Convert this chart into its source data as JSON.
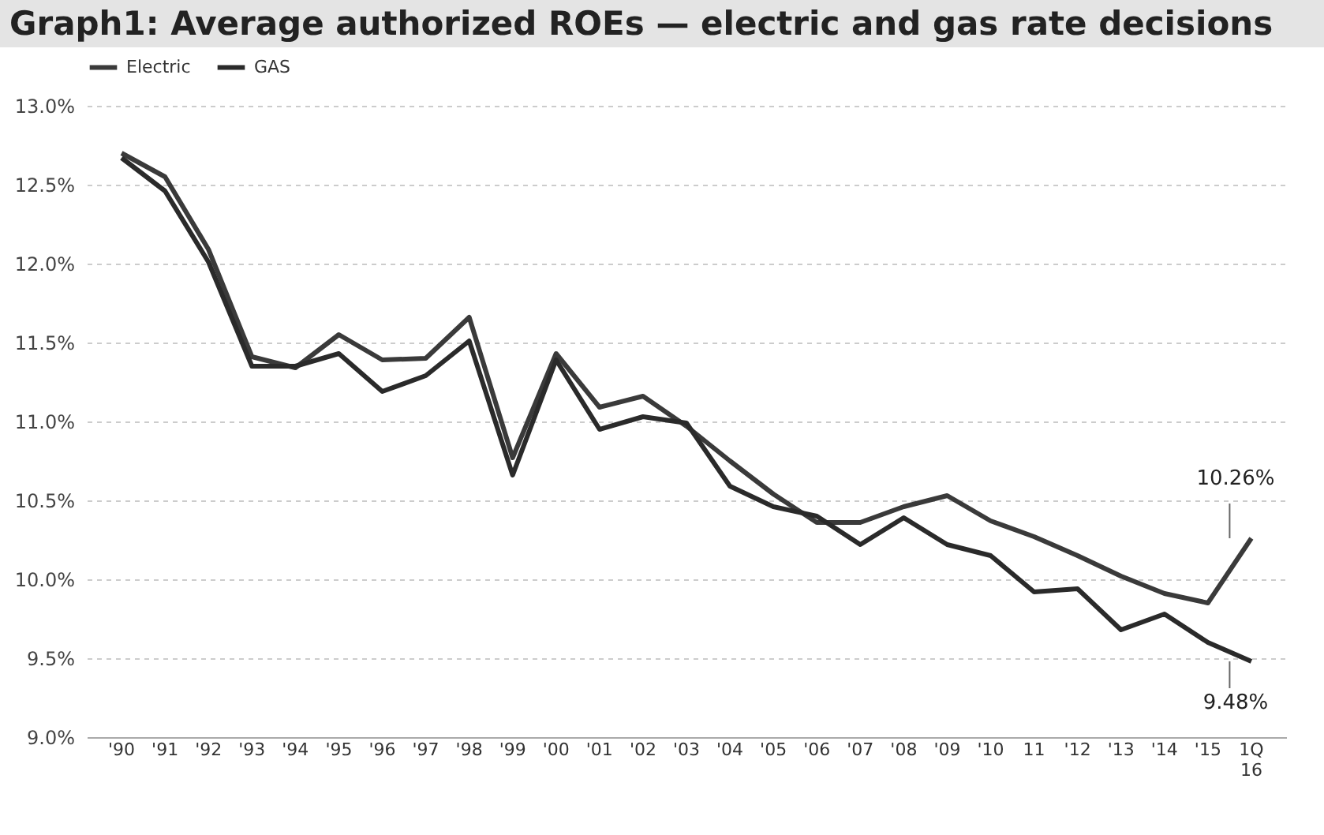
{
  "chart_data": {
    "type": "line",
    "title": "Graph1: Average authorized ROEs — electric and gas rate decisions",
    "categories": [
      "'90",
      "'91",
      "'92",
      "'93",
      "'94",
      "'95",
      "'96",
      "'97",
      "'98",
      "'99",
      "'00",
      "'01",
      "'02",
      "'03",
      "'04",
      "'05",
      "'06",
      "'07",
      "'08",
      "'09",
      "'10",
      "11",
      "'12",
      "'13",
      "'14",
      "'15",
      "1Q 16"
    ],
    "series": [
      {
        "name": "Electric",
        "color": "#3a3a3a",
        "values": [
          12.7,
          12.55,
          12.09,
          11.41,
          11.34,
          11.55,
          11.39,
          11.4,
          11.66,
          10.77,
          11.43,
          11.09,
          11.16,
          10.97,
          10.75,
          10.54,
          10.36,
          10.36,
          10.46,
          10.53,
          10.37,
          10.27,
          10.15,
          10.02,
          9.91,
          9.85,
          10.26
        ]
      },
      {
        "name": "GAS",
        "color": "#2a2a2a",
        "values": [
          12.67,
          12.46,
          12.01,
          11.35,
          11.35,
          11.43,
          11.19,
          11.29,
          11.51,
          10.66,
          11.39,
          10.95,
          11.03,
          10.99,
          10.59,
          10.46,
          10.4,
          10.22,
          10.39,
          10.22,
          10.15,
          9.92,
          9.94,
          9.68,
          9.78,
          9.6,
          9.48
        ]
      }
    ],
    "ylim": [
      9,
      13
    ],
    "yticks": [
      {
        "value": 9,
        "label": "9.0%"
      },
      {
        "value": 9.5,
        "label": "9.5%"
      },
      {
        "value": 10,
        "label": "10.0%"
      },
      {
        "value": 10.5,
        "label": "10.5%"
      },
      {
        "value": 11,
        "label": "11.0%"
      },
      {
        "value": 11.5,
        "label": "11.5%"
      },
      {
        "value": 12,
        "label": "12.0%"
      },
      {
        "value": 12.5,
        "label": "12.5%"
      },
      {
        "value": 13,
        "label": "13.0%"
      }
    ],
    "grid": "y",
    "legend": "top",
    "line_style": "solid",
    "annotations": [
      {
        "text": "10.26%",
        "x": "1Q 16",
        "y": 10.26
      },
      {
        "text": "9.48%",
        "x": "1Q 16",
        "y": 9.48
      }
    ]
  }
}
